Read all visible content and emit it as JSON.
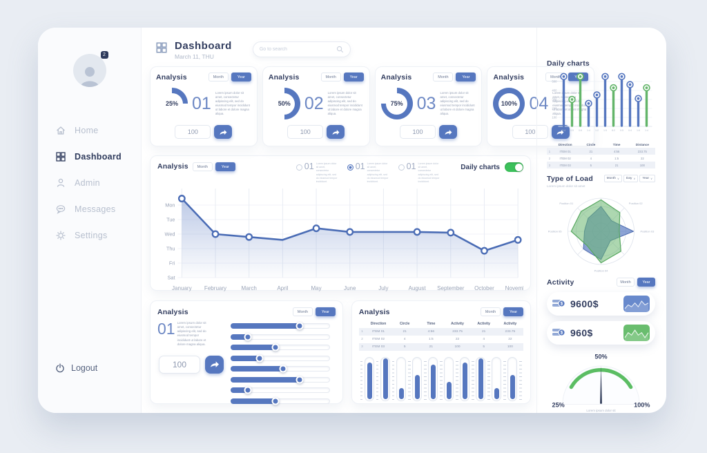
{
  "colors": {
    "primary": "#5677bf",
    "line": "#4a6cb5",
    "green": "#63b56a",
    "toggle_green": "#3cc15b",
    "gauge_green": "#5bbd63",
    "heading": "#323d5f",
    "muted": "#98a2b6",
    "light": "#b6bfcf"
  },
  "header": {
    "title": "Dashboard",
    "date": "March 11, THU",
    "search_placeholder": "Go to search"
  },
  "controls": {
    "month_label": "Month",
    "year_label": "Year"
  },
  "lorem_short": "Lorem ipsum dolor sit amet, consectetur adipiscing elit, sed do eiusmod tempor incididunt ut labore et dolore magna aliqua.",
  "lorem_tiny": "Lorem ipsum dolor sit amet, consectetur adipiscing elit, sed do eiusmod tempor incididunt.",
  "sidebar": {
    "badge": "2",
    "items": [
      {
        "label": "Home",
        "icon": "home-icon",
        "active": false
      },
      {
        "label": "Dashboard",
        "icon": "dashboard-icon",
        "active": true
      },
      {
        "label": "Admin",
        "icon": "admin-icon",
        "active": false
      },
      {
        "label": "Messages",
        "icon": "messages-icon",
        "active": false
      },
      {
        "label": "Settings",
        "icon": "settings-icon",
        "active": false
      }
    ],
    "logout_label": "Logout"
  },
  "stat_cards": [
    {
      "title": "Analysis",
      "percent": 25,
      "percent_label": "25%",
      "number": "01",
      "input_value": "100"
    },
    {
      "title": "Analysis",
      "percent": 50,
      "percent_label": "50%",
      "number": "02",
      "input_value": "100"
    },
    {
      "title": "Analysis",
      "percent": 75,
      "percent_label": "75%",
      "number": "03",
      "input_value": "100"
    },
    {
      "title": "Analysis",
      "percent": 100,
      "percent_label": "100%",
      "number": "04",
      "input_value": "100"
    }
  ],
  "main_chart": {
    "title": "Analysis",
    "options": [
      {
        "number": "01",
        "selected": false
      },
      {
        "number": "01",
        "selected": true
      },
      {
        "number": "01",
        "selected": false
      }
    ],
    "toggle_label": "Daily charts",
    "toggle_on": true
  },
  "bottom_left": {
    "title": "Analysis",
    "number": "01",
    "input_value": "100"
  },
  "bottom_mid": {
    "title": "Analysis"
  },
  "right_panel": {
    "daily_charts_title": "Daily charts",
    "type_of_load": {
      "title": "Type of Load",
      "subtitle": "Lorem ipsum dolor sit amet",
      "dropdowns": [
        "Month",
        "Day",
        "Year"
      ]
    },
    "activity": {
      "title": "Activity",
      "rows": [
        {
          "amount": "9600$",
          "spark": "blue"
        },
        {
          "amount": "960$",
          "spark": "green"
        }
      ]
    }
  },
  "daily_table": {
    "columns": [
      "",
      "Direction",
      "Circle",
      "Time",
      "Distance"
    ],
    "rows": [
      [
        "1",
        "ITEM 01",
        "21",
        "4:56",
        "233.75"
      ],
      [
        "2",
        "ITEM 02",
        "4",
        "1:5",
        "22"
      ],
      [
        "3",
        "ITEM 03",
        "5",
        "21",
        "100"
      ]
    ]
  },
  "analysis_table": {
    "columns": [
      "",
      "Direction",
      "Circle",
      "Time",
      "Activity",
      "Activity",
      "Activity"
    ],
    "rows": [
      [
        "1",
        "ITEM 01",
        "21",
        "4:56",
        "233.75",
        "21",
        "233.75"
      ],
      [
        "2",
        "ITEM 02",
        "4",
        "1:5",
        "22",
        "4",
        "22"
      ],
      [
        "3",
        "ITEM 03",
        "5",
        "21",
        "100",
        "5",
        "100"
      ]
    ]
  },
  "chart_data": [
    {
      "id": "weekly_line",
      "type": "area",
      "title": "Analysis weekly line",
      "y_labels": [
        "Mon",
        "Tue",
        "Wed",
        "Thu",
        "Fri",
        "Sat"
      ],
      "x": [
        "January",
        "February",
        "March",
        "April",
        "May",
        "June",
        "July",
        "August",
        "September",
        "October",
        "November"
      ],
      "values": [
        5.45,
        3.0,
        2.8,
        2.6,
        3.4,
        3.15,
        3.15,
        3.15,
        3.1,
        1.85,
        2.6
      ],
      "markers": [
        true,
        true,
        true,
        false,
        true,
        true,
        false,
        true,
        true,
        true,
        true
      ],
      "ylim": [
        0,
        6
      ],
      "grid": true
    },
    {
      "id": "daily_lollipop",
      "type": "lollipop",
      "title": "Daily charts",
      "ylim": [
        0,
        600
      ],
      "y_ticks": [
        500,
        400,
        300,
        200,
        100
      ],
      "values": [
        555,
        300,
        555,
        255,
        350,
        555,
        430,
        555,
        465,
        310,
        430
      ],
      "colors": [
        "blue",
        "green",
        "green",
        "blue",
        "blue",
        "blue",
        "green",
        "blue",
        "blue",
        "blue",
        "green"
      ],
      "x_labels": [
        "0:4",
        "0:5",
        "0:6",
        "1:4",
        "1:2",
        "1:5",
        "8:2",
        "0:5",
        "0:4",
        "1:6",
        "1:4"
      ]
    },
    {
      "id": "type_of_load",
      "type": "radar",
      "axes": 8,
      "series": [
        {
          "name": "blue",
          "values": [
            0.75,
            0.45,
            0.98,
            0.4,
            0.85,
            0.75,
            0.5,
            0.55
          ]
        },
        {
          "name": "green",
          "values": [
            0.95,
            0.8,
            0.55,
            0.85,
            0.95,
            0.6,
            0.9,
            0.85
          ]
        }
      ],
      "labels": [
        {
          "text": "Position 01",
          "axis": 7
        },
        {
          "text": "Position 02",
          "axis": 1
        },
        {
          "text": "Position 03",
          "axis": 2
        },
        {
          "text": "Position 04",
          "axis": 4
        },
        {
          "text": "Position 05",
          "axis": 6
        }
      ]
    },
    {
      "id": "spark_blue",
      "type": "line",
      "values": [
        3,
        5,
        4,
        6,
        4,
        7,
        5,
        6
      ]
    },
    {
      "id": "spark_green",
      "type": "line",
      "values": [
        4,
        6,
        5,
        7,
        5,
        6,
        4,
        6
      ]
    },
    {
      "id": "gauge",
      "type": "gauge",
      "value_label": "50%",
      "min_label": "25%",
      "max_label": "100%",
      "caption": "Lorem ipsum  dolor sit"
    },
    {
      "id": "sliders",
      "type": "bar",
      "values": [
        0.7,
        0.17,
        0.45,
        0.29,
        0.53,
        0.7,
        0.17,
        0.45
      ]
    },
    {
      "id": "thermometers",
      "type": "bar",
      "values": [
        0.85,
        0.95,
        0.25,
        0.55,
        0.8,
        0.4,
        0.85,
        0.95,
        0.25,
        0.55
      ]
    }
  ]
}
